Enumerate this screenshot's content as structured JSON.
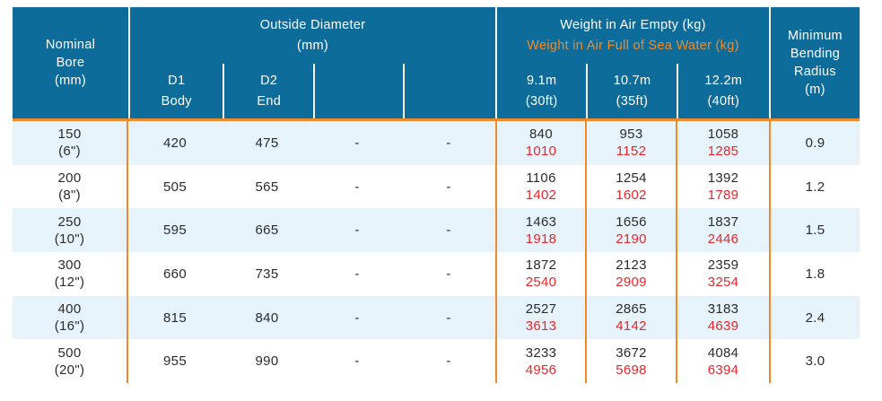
{
  "colors": {
    "header_blue": "#0e6c9b",
    "accent_orange": "#ef8a2b",
    "row_alt_blue": "#e6f3fb",
    "weight_full_red": "#e8262b",
    "body_text": "#2b2b2b",
    "header_text": "#ffffff"
  },
  "header": {
    "nominal_bore": "Nominal\nBore\n(mm)",
    "outside_diameter": {
      "title": "Outside Diameter",
      "unit": "(mm)",
      "sub": [
        {
          "label": "D1",
          "sublabel": "Body"
        },
        {
          "label": "D2",
          "sublabel": "End"
        },
        {
          "label": "",
          "sublabel": ""
        },
        {
          "label": "",
          "sublabel": ""
        }
      ]
    },
    "weight": {
      "title_empty": "Weight in Air Empty (kg)",
      "title_full": "Weight in Air Full of Sea Water (kg)",
      "lengths": [
        {
          "m": "9.1m",
          "ft": "(30ft)"
        },
        {
          "m": "10.7m",
          "ft": "(35ft)"
        },
        {
          "m": "12.2m",
          "ft": "(40ft)"
        }
      ]
    },
    "min_bending_radius": "Minimum\nBending\nRadius\n(m)"
  },
  "rows": [
    {
      "bore": "150",
      "bore_in": "(6\")",
      "d1": "420",
      "d2": "475",
      "c1": "-",
      "c2": "-",
      "w": [
        {
          "empty": "840",
          "full": "1010"
        },
        {
          "empty": "953",
          "full": "1152"
        },
        {
          "empty": "1058",
          "full": "1285"
        }
      ],
      "radius": "0.9"
    },
    {
      "bore": "200",
      "bore_in": "(8\")",
      "d1": "505",
      "d2": "565",
      "c1": "-",
      "c2": "-",
      "w": [
        {
          "empty": "1106",
          "full": "1402"
        },
        {
          "empty": "1254",
          "full": "1602"
        },
        {
          "empty": "1392",
          "full": "1789"
        }
      ],
      "radius": "1.2"
    },
    {
      "bore": "250",
      "bore_in": "(10\")",
      "d1": "595",
      "d2": "665",
      "c1": "-",
      "c2": "-",
      "w": [
        {
          "empty": "1463",
          "full": "1918"
        },
        {
          "empty": "1656",
          "full": "2190"
        },
        {
          "empty": "1837",
          "full": "2446"
        }
      ],
      "radius": "1.5"
    },
    {
      "bore": "300",
      "bore_in": "(12\")",
      "d1": "660",
      "d2": "735",
      "c1": "-",
      "c2": "-",
      "w": [
        {
          "empty": "1872",
          "full": "2540"
        },
        {
          "empty": "2123",
          "full": "2909"
        },
        {
          "empty": "2359",
          "full": "3254"
        }
      ],
      "radius": "1.8"
    },
    {
      "bore": "400",
      "bore_in": "(16\")",
      "d1": "815",
      "d2": "840",
      "c1": "-",
      "c2": "-",
      "w": [
        {
          "empty": "2527",
          "full": "3613"
        },
        {
          "empty": "2865",
          "full": "4142"
        },
        {
          "empty": "3183",
          "full": "4639"
        }
      ],
      "radius": "2.4"
    },
    {
      "bore": "500",
      "bore_in": "(20\")",
      "d1": "955",
      "d2": "990",
      "c1": "-",
      "c2": "-",
      "w": [
        {
          "empty": "3233",
          "full": "4956"
        },
        {
          "empty": "3672",
          "full": "5698"
        },
        {
          "empty": "4084",
          "full": "6394"
        }
      ],
      "radius": "3.0"
    }
  ]
}
